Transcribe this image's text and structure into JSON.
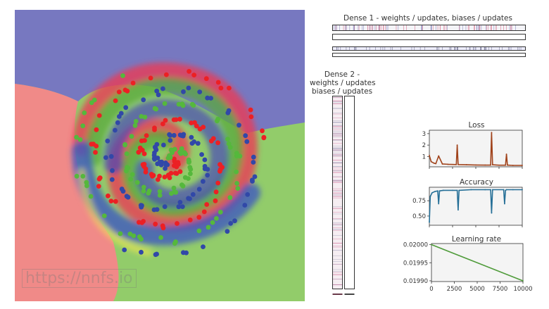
{
  "watermark": "https://nnfs.io",
  "colors": {
    "blue_region": "#7778c0",
    "green_region": "#92cc6a",
    "red_region": "#f08a88",
    "red_dots": "#ec2024",
    "blue_dots": "#3148a8",
    "green_dots": "#55b83c",
    "loss_line": "#a0421a",
    "acc_line": "#256f97",
    "lr_line": "#4f9b3a"
  },
  "dense1": {
    "title": "Dense 1 - weights / updates, biases / updates"
  },
  "dense2": {
    "title_lines": [
      "Dense 2 -",
      "weights / updates",
      "biases / updates"
    ]
  },
  "chart_data": [
    {
      "type": "line",
      "title": "Loss",
      "x": [
        0,
        200,
        500,
        700,
        1000,
        1400,
        2000,
        2900,
        3000,
        3100,
        4000,
        5000,
        6000,
        6600,
        6700,
        6800,
        7500,
        8200,
        8300,
        8400,
        9000,
        10000
      ],
      "y": [
        1.1,
        0.55,
        0.42,
        0.38,
        1.05,
        0.35,
        0.32,
        0.3,
        2.0,
        0.3,
        0.28,
        0.26,
        0.25,
        0.25,
        3.1,
        0.28,
        0.24,
        0.24,
        1.2,
        0.25,
        0.22,
        0.22
      ],
      "yticks": [
        "1",
        "2",
        "3"
      ],
      "ylim": [
        0.1,
        3.3
      ],
      "xlim": [
        0,
        10000
      ]
    },
    {
      "type": "line",
      "title": "Accuracy",
      "x": [
        0,
        100,
        300,
        600,
        900,
        1000,
        1100,
        1500,
        2500,
        3000,
        3100,
        3200,
        4500,
        6000,
        6600,
        6700,
        6800,
        8000,
        8100,
        8200,
        8300,
        9000,
        10000
      ],
      "y": [
        0.4,
        0.82,
        0.88,
        0.9,
        0.91,
        0.7,
        0.91,
        0.92,
        0.92,
        0.92,
        0.6,
        0.92,
        0.93,
        0.93,
        0.93,
        0.55,
        0.93,
        0.93,
        0.7,
        0.92,
        0.93,
        0.93,
        0.93
      ],
      "yticks": [
        "0.50",
        "0.75"
      ],
      "ylim": [
        0.35,
        0.97
      ],
      "xlim": [
        0,
        10000
      ]
    },
    {
      "type": "line",
      "title": "Learning rate",
      "x": [
        0,
        10000
      ],
      "y": [
        0.02,
        0.0199
      ],
      "yticks": [
        "0.01990",
        "0.01995",
        "0.02000"
      ],
      "ylim": [
        0.019898,
        0.020003
      ],
      "xlim": [
        0,
        10000
      ],
      "xticks": [
        "0",
        "2500",
        "5000",
        "7500",
        "10000"
      ]
    }
  ]
}
